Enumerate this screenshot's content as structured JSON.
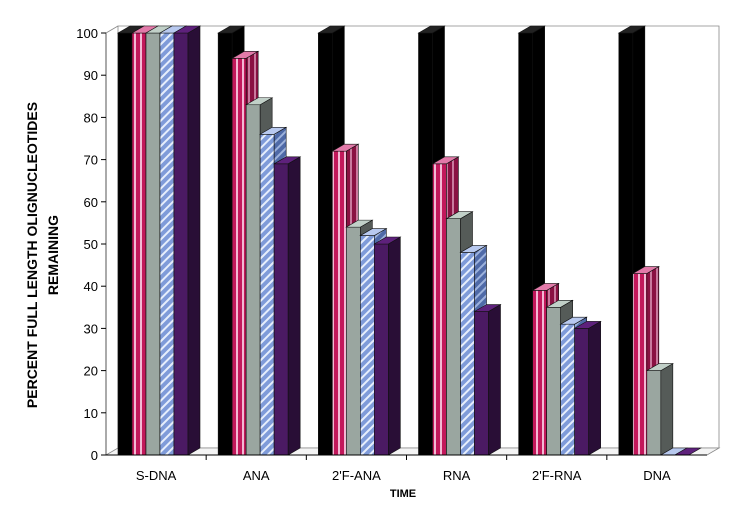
{
  "chart_data": {
    "type": "bar",
    "style": "3d-clustered",
    "title": "",
    "xlabel": "TIME",
    "ylabel_lines": [
      "PERCENT FULL LENGTH OLIGNUCLEOTIDES",
      "REMAINING"
    ],
    "ylim": [
      0,
      100
    ],
    "yticks": [
      0,
      10,
      20,
      30,
      40,
      50,
      60,
      70,
      80,
      90,
      100
    ],
    "grid": false,
    "legend": "none",
    "categories": [
      "S-DNA",
      "ANA",
      "2'F-ANA",
      "RNA",
      "2'F-RNA",
      "DNA"
    ],
    "series": [
      {
        "values": [
          100,
          100,
          100,
          100,
          100,
          100
        ],
        "color": "#000000",
        "pattern": "solid"
      },
      {
        "values": [
          100,
          94,
          72,
          69,
          39,
          43
        ],
        "color": "#c2185b",
        "pattern": "vertical-stripes"
      },
      {
        "values": [
          100,
          83,
          54,
          56,
          35,
          20
        ],
        "color": "#9aa6a0",
        "pattern": "solid"
      },
      {
        "values": [
          100,
          76,
          52,
          48,
          31,
          0
        ],
        "color": "#7f9bd9",
        "pattern": "diagonal-stripes"
      },
      {
        "values": [
          100,
          69,
          50,
          34,
          30,
          0
        ],
        "color": "#4b1a63",
        "pattern": "solid"
      }
    ]
  }
}
